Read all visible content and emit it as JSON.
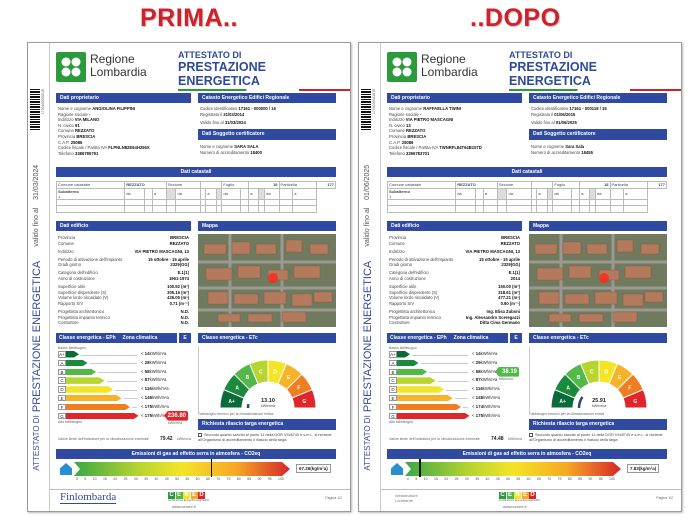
{
  "docs": [
    {
      "heading": "PRIMA..",
      "region_name": [
        "Regione",
        "Lombardia"
      ],
      "doc_title_1": "ATTESTATO DI",
      "doc_title_2": "PRESTAZIONE ENERGETICA",
      "vertical_title_1": "ATTESTATO DI",
      "vertical_title_2": "PRESTAZIONE ENERGETICA",
      "valid_label": "valido fino al",
      "valid_date": "31/03/2024",
      "barcode_number": "1716100000016",
      "owner": {
        "title": "Dati proprietario",
        "rows": [
          [
            "Nome e cognome",
            "ANGIOLINA FILIPPINI"
          ],
          [
            "Ragione sociale",
            "-"
          ],
          [
            "Indirizzo",
            "VIA MILANO"
          ],
          [
            "N. civico",
            "91"
          ],
          [
            "Comune",
            "REZZATO"
          ],
          [
            "Provincia",
            "BRESCIA"
          ],
          [
            "C.A.P.",
            "25086"
          ],
          [
            "Codice fiscale / Partita IVA",
            "FLPNLN82E64H256X"
          ],
          [
            "Telefono",
            "3386785791"
          ]
        ]
      },
      "catasto": {
        "title": "Catasto Energetico Edifici Regionale",
        "rows": [
          [
            "Codice identificativo",
            "17161 - 000000 / 16"
          ],
          [
            "Registrato il",
            "31/03/2014"
          ]
        ],
        "valid": [
          "Valido fino al",
          "31/03/2024"
        ]
      },
      "certifier": {
        "title": "Dati Soggetto certificatore",
        "rows": [
          [
            "Nome e cognome",
            "SARA SALA"
          ],
          [
            "Numero di accreditamento",
            "18400"
          ]
        ]
      },
      "cadastral": {
        "title": "Dati catastali",
        "header": [
          "Comune catastale",
          "REZZATO",
          "Sezione",
          "",
          "Foglio",
          "18",
          "Particella",
          "177"
        ],
        "sub_label": "Subalterno",
        "sub_value": "1",
        "from": "da",
        "to": "a"
      },
      "building": {
        "title": "Dati edificio",
        "groups": [
          [
            [
              "Provincia",
              "BRESCIA"
            ],
            [
              "Comune",
              "REZZATO"
            ]
          ],
          [
            [
              "Indirizzo",
              "VIA PIETRO MASCAGNI, 13"
            ]
          ],
          [
            [
              "Periodo di attivazione dell'impianto",
              "15 ottobre - 15 aprile"
            ],
            [
              "Gradi giorno",
              "2329(GG)"
            ]
          ],
          [
            [
              "Categoria dell'edificio",
              "E.1(1)"
            ],
            [
              "Anno di costruzione",
              "1961-1974"
            ]
          ],
          [
            [
              "Superficie utile",
              "100.92 (m²)"
            ],
            [
              "Superficie disperdente (S)",
              "305.16 (m²)"
            ],
            [
              "Volume lordo riscaldato (V)",
              "426.05 (m³)"
            ],
            [
              "Rapporto S/V",
              "0.71 (m⁻¹)"
            ]
          ],
          [
            [
              "Progettista architettonico",
              "N.D."
            ],
            [
              "Progettista impianto termico",
              "N.D."
            ],
            [
              "Costruttore",
              "N.D."
            ]
          ]
        ]
      },
      "map_title": "Mappa",
      "ep": {
        "title": "Classe energetica - EPh",
        "zone_label": "Zona climatica",
        "zone": "E",
        "top_note": "Basso fabbisogno",
        "bottom_note": "Alto fabbisogno",
        "classes": [
          {
            "label": "A+",
            "threshold": "14",
            "color": "#0a6b38"
          },
          {
            "label": "A",
            "threshold": "28",
            "color": "#1a8a3c"
          },
          {
            "label": "B",
            "threshold": "58",
            "color": "#52b848"
          },
          {
            "label": "C",
            "threshold": "87",
            "color": "#b8d431"
          },
          {
            "label": "D",
            "threshold": "116",
            "color": "#f3e526"
          },
          {
            "label": "E",
            "threshold": "146",
            "color": "#f7b327"
          },
          {
            "label": "F",
            "threshold": "175",
            "color": "#ef7d22"
          },
          {
            "label": "G",
            "threshold": "175",
            "color": "#e0262a"
          }
        ],
        "unit": "kWh/m²a",
        "value": "236.80",
        "value_class": 7,
        "value_unit": "kWh/m²a",
        "nzeb_label": "Valore limite dell'indicatore per la climatizzazione invernale",
        "nzeb_value": "79.42",
        "nzeb_unit": "kWh/m²a"
      },
      "et": {
        "title": "Classe energetica - ETc",
        "classes": [
          "A+",
          "A",
          "B",
          "C",
          "D",
          "E",
          "F",
          "G"
        ],
        "value": "13.10",
        "value_unit": "kWh/m²a",
        "active_class": 0,
        "caption": "Fabbisogno termico per la climatizzazione estiva"
      },
      "targa": {
        "title": "Richiesta rilascio targa energetica",
        "text": "Secondo quanto sancito al punto 11 della DGR VIII/8745 e s.m.i., si richiede all'Organismo di accreditamento il rilascio della targa"
      },
      "emissions": {
        "title": "Emissioni di gas ad effetto serra in atmosfera - CO2eq",
        "ticks": [
          "0",
          "5",
          "10",
          "15",
          "20",
          "25",
          "30",
          "35",
          "40",
          "45",
          "50",
          "55",
          "60",
          "65",
          "70",
          "75",
          "80",
          "85",
          "90",
          "95",
          "100"
        ],
        "value": 67.26,
        "value_text": "67.26(kg/m²a)"
      },
      "footer": {
        "left_logo": "Finlombarda",
        "cened": [
          "C",
          "E",
          "N",
          "E",
          "D"
        ],
        "cened_tag": "Certificazione Energetica degli Edifici",
        "url": "www.cened.it",
        "page": "Pagina 1/2"
      }
    },
    {
      "heading": "..DOPO",
      "region_name": [
        "Regione",
        "Lombardia"
      ],
      "doc_title_1": "ATTESTATO DI",
      "doc_title_2": "PRESTAZIONE ENERGETICA",
      "vertical_title_1": "ATTESTATO DI",
      "vertical_title_2": "PRESTAZIONE ENERGETICA",
      "valid_label": "valido fino al",
      "valid_date": "01/06/2025",
      "barcode_number": "1716100011815",
      "owner": {
        "title": "Dati proprietario",
        "rows": [
          [
            "Nome e cognome",
            "RAFFAELLA TWINI"
          ],
          [
            "Ragione sociale",
            "-"
          ],
          [
            "Indirizzo",
            "VIA PIETRO MASCAGNI"
          ],
          [
            "N. civico",
            "13"
          ],
          [
            "Comune",
            "REZZATO"
          ],
          [
            "Provincia",
            "BRESCIA"
          ],
          [
            "C.A.P.",
            "25086"
          ],
          [
            "Codice fiscale / Partita IVA",
            "TWNRFL84T64B157D"
          ],
          [
            "Telefono",
            "3396783701"
          ]
        ]
      },
      "catasto": {
        "title": "Catasto Energetico Edifici Regionale",
        "rows": [
          [
            "Codice identificativo",
            "17161 - 000118 / 15"
          ],
          [
            "Registrato il",
            "01/06/2015"
          ]
        ],
        "valid": [
          "Valido fino al",
          "01/06/2025"
        ]
      },
      "certifier": {
        "title": "Dati Soggetto certificatore",
        "rows": [
          [
            "Nome e cognome",
            "Sara Sala"
          ],
          [
            "Numero di accreditamento",
            "18455"
          ]
        ]
      },
      "cadastral": {
        "title": "Dati catastali",
        "header": [
          "Comune catastale",
          "REZZATO",
          "Sezione",
          "",
          "Foglio",
          "18",
          "Particella",
          "177"
        ],
        "sub_label": "Subalterno",
        "sub_value": "1",
        "from": "da",
        "to": "a"
      },
      "building": {
        "title": "Dati edificio",
        "groups": [
          [
            [
              "Provincia",
              "BRESCIA"
            ],
            [
              "Comune",
              "REZZATO"
            ]
          ],
          [
            [
              "Indirizzo",
              "VIA PIETRO MASCAGNI, 13"
            ]
          ],
          [
            [
              "Periodo di attivazione dell'impianto",
              "15 ottobre - 15 aprile"
            ],
            [
              "Gradi giorno",
              "2329(GG)"
            ]
          ],
          [
            [
              "Categoria dell'edificio",
              "E.1(1)"
            ],
            [
              "Anno di costruzione",
              "2014"
            ]
          ],
          [
            [
              "Superficie utile",
              "150.00 (m²)"
            ],
            [
              "Superficie disperdente (S)",
              "318.61 (m²)"
            ],
            [
              "Volume lordo riscaldato (V)",
              "477.21 (m³)"
            ],
            [
              "Rapporto S/V",
              "0.60 (m⁻¹)"
            ]
          ],
          [
            [
              "Progettista architettonico",
              "Ing. Elisa Zuboni"
            ],
            [
              "Progettista impianto termico",
              "Ing. Alessandro Sceregazzi"
            ],
            [
              "Costruttore",
              "Ditta Cima Germano"
            ]
          ]
        ]
      },
      "map_title": "Mappa",
      "ep": {
        "title": "Classe energetica - EPh",
        "zone_label": "Zona climatica",
        "zone": "E",
        "top_note": "Basso fabbisogno",
        "bottom_note": "Alto fabbisogno",
        "classes": [
          {
            "label": "A+",
            "threshold": "14",
            "color": "#0a6b38"
          },
          {
            "label": "A",
            "threshold": "29",
            "color": "#1a8a3c"
          },
          {
            "label": "B",
            "threshold": "58",
            "color": "#52b848"
          },
          {
            "label": "C",
            "threshold": "87",
            "color": "#b8d431"
          },
          {
            "label": "D",
            "threshold": "116",
            "color": "#f3e526"
          },
          {
            "label": "E",
            "threshold": "145",
            "color": "#f7b327"
          },
          {
            "label": "F",
            "threshold": "174",
            "color": "#ef7d22"
          },
          {
            "label": "G",
            "threshold": "175",
            "color": "#e0262a"
          }
        ],
        "unit": "kWh/m²a",
        "value": "38.19",
        "value_class": 2,
        "value_unit": "kWh/m²a",
        "nzeb_label": "Valore limite dell'indicatore per la climatizzazione invernale",
        "nzeb_value": "74.48",
        "nzeb_unit": "kWh/m²a"
      },
      "et": {
        "title": "Classe energetica - ETc",
        "classes": [
          "A+",
          "A",
          "B",
          "C",
          "D",
          "E",
          "F",
          "G"
        ],
        "value": "25.91",
        "value_unit": "kWh/m²a",
        "active_class": 1,
        "caption": "Fabbisogno termico per la climatizzazione estiva"
      },
      "targa": {
        "title": "Richiesta rilascio targa energetica",
        "text": "Secondo quanto sancito al punto 11 della DGR VIII/8745 e s.m.i., si richiede all'Organismo di accreditamento il rilascio della targa"
      },
      "emissions": {
        "title": "Emissioni di gas ad effetto serra in atmosfera - CO2eq",
        "ticks": [
          "0",
          "5",
          "10",
          "15",
          "20",
          "25",
          "30",
          "35",
          "40",
          "45",
          "50",
          "55",
          "60",
          "65",
          "70",
          "75",
          "80",
          "85",
          "90",
          "95",
          "100"
        ],
        "value": 7.83,
        "value_text": "7.83(kg/m²a)"
      },
      "footer": {
        "left_logo": "Infrastrutture Lombarde",
        "cened": [
          "C",
          "E",
          "N",
          "E",
          "D"
        ],
        "cened_tag": "Certificazione Energetica degli Edifici",
        "url": "www.cened.it",
        "page": "Pagina 1/2"
      }
    }
  ]
}
